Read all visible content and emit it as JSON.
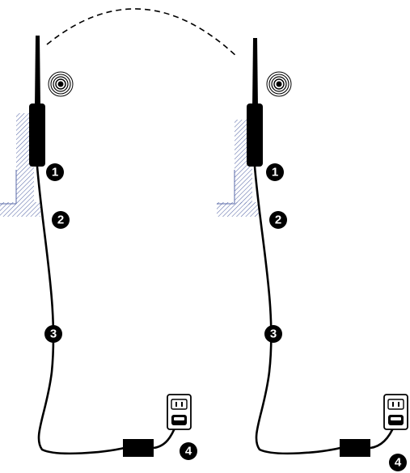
{
  "colors": {
    "ink": "#000000",
    "hatch": "#5a6aa8",
    "background": "#ffffff",
    "callout_text": "#ffffff"
  },
  "icons": {
    "antenna": "antenna-icon",
    "signal": "wireless-signal-icon",
    "outlet": "wall-outlet-icon",
    "adapter": "power-adapter-icon"
  },
  "left_unit": {
    "callouts": [
      {
        "label": "1"
      },
      {
        "label": "2"
      },
      {
        "label": "3"
      },
      {
        "label": "4"
      }
    ]
  },
  "right_unit": {
    "callouts": [
      {
        "label": "1"
      },
      {
        "label": "2"
      },
      {
        "label": "3"
      },
      {
        "label": "4"
      }
    ]
  }
}
